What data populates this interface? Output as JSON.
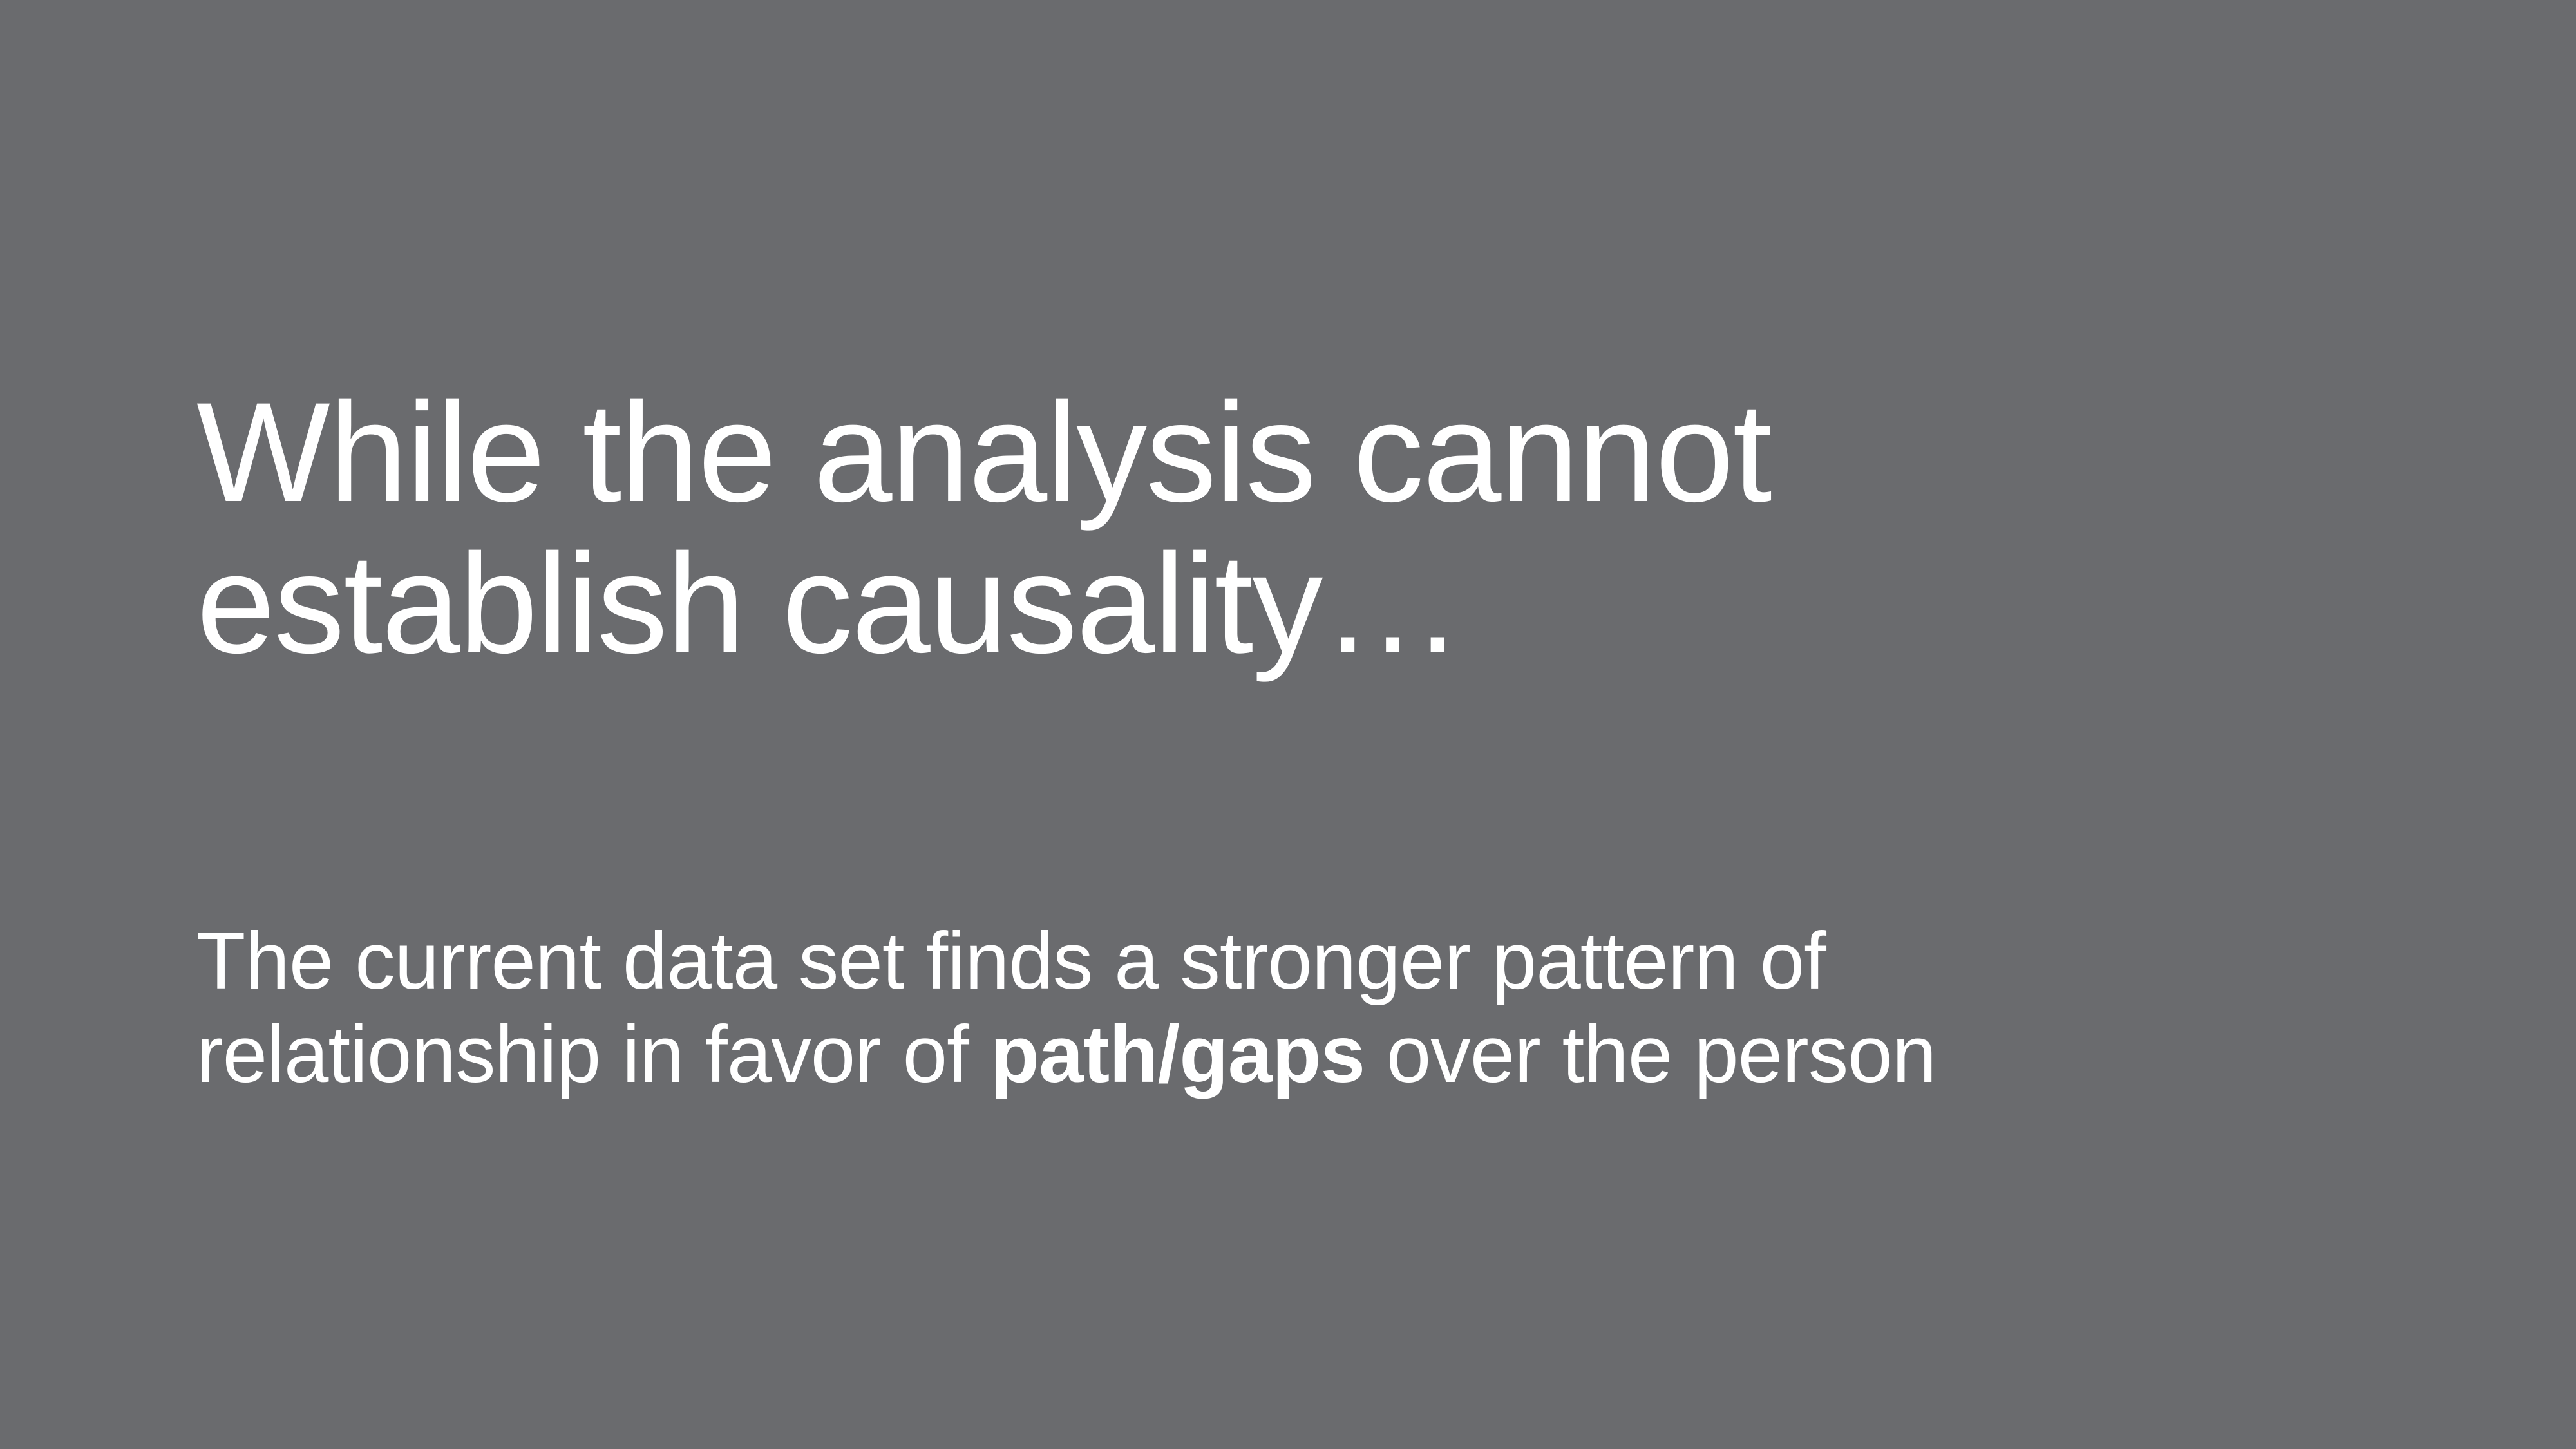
{
  "slide": {
    "background_color": "#6a6b6e",
    "text_color": "#ffffff",
    "headline": {
      "line1": "While the analysis cannot",
      "line2": "establish causality…"
    },
    "body": {
      "line1": "The current data set finds a stronger pattern of",
      "line2_before": "relationship in favor of ",
      "line2_emphasis": "path/gaps",
      "line2_after": " over the person"
    }
  }
}
